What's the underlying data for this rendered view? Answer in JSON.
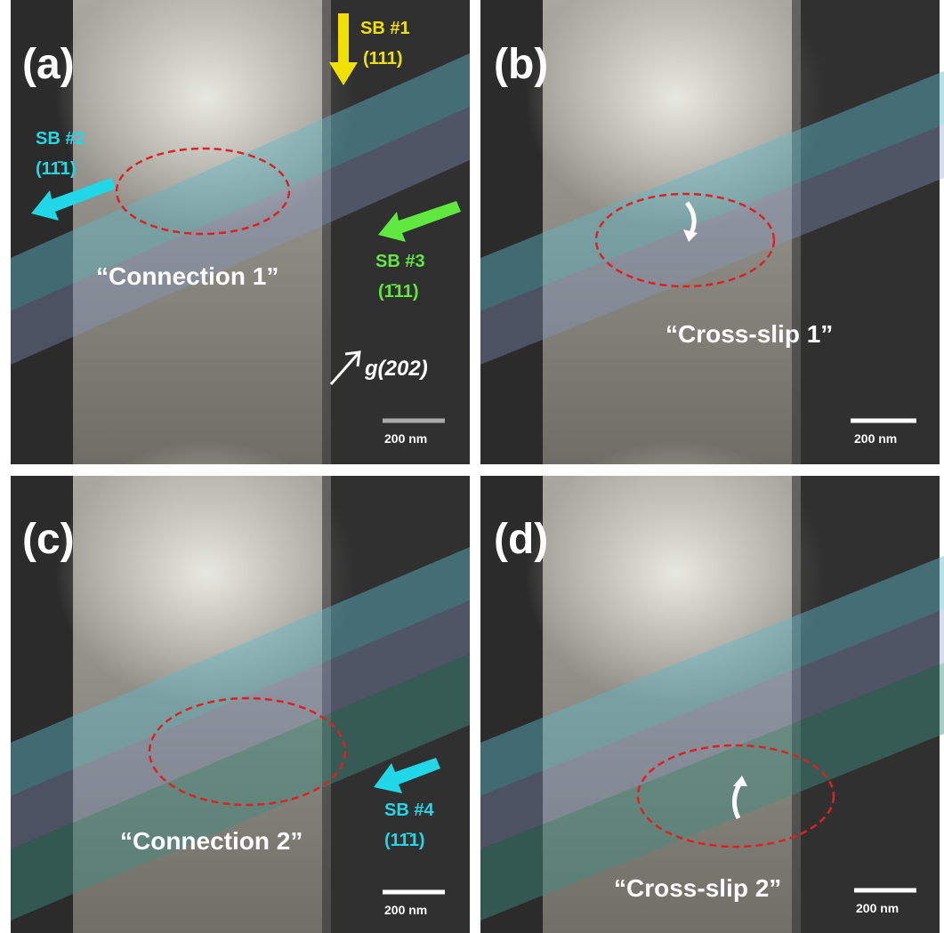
{
  "panels": [
    {
      "label": "(a)",
      "caption": "“Connection 1”",
      "scale_bar": "200 nm",
      "slip_bands": [
        {
          "name": "SB #1",
          "plane": "(111)"
        },
        {
          "name": "SB #2",
          "plane": "(11̄1)"
        },
        {
          "name": "SB #3",
          "plane": "(1̄11)"
        }
      ],
      "vector": "g(202)"
    },
    {
      "label": "(b)",
      "caption": "“Cross-slip 1”",
      "scale_bar": "200 nm"
    },
    {
      "label": "(c)",
      "caption": "“Connection 2”",
      "scale_bar": "200 nm",
      "slip_bands": [
        {
          "name": "SB #4",
          "plane": "(11̄1)"
        }
      ]
    },
    {
      "label": "(d)",
      "caption": "“Cross-slip 2”",
      "scale_bar": "200 nm"
    }
  ]
}
